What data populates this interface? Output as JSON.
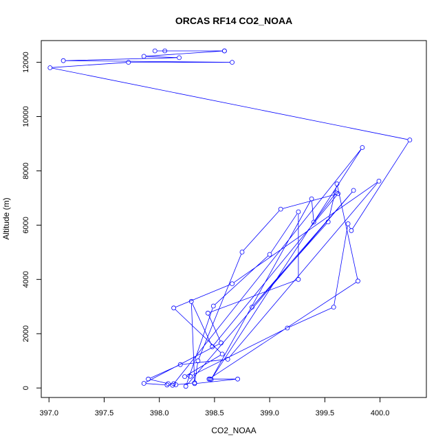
{
  "chart_data": {
    "type": "line",
    "title": "ORCAS RF14 CO2_NOAA",
    "xlabel": "CO2_NOAA",
    "ylabel": "Altitude (m)",
    "xlim": [
      396.93,
      400.42
    ],
    "ylim": [
      -350,
      12800
    ],
    "xticks": [
      397.0,
      397.5,
      398.0,
      398.5,
      399.0,
      399.5,
      400.0
    ],
    "xtick_labels": [
      "397.0",
      "397.5",
      "398.0",
      "398.5",
      "399.0",
      "399.5",
      "400.0"
    ],
    "yticks": [
      0,
      2000,
      4000,
      6000,
      8000,
      10000,
      12000
    ],
    "ytick_labels": [
      "0",
      "2000",
      "4000",
      "6000",
      "8000",
      "10000",
      "12000"
    ],
    "grid": false,
    "marker": "open-circle",
    "line_color": "#0000ff",
    "series": [
      {
        "points": [
          [
            398.59,
            12420
          ],
          [
            397.96,
            12420
          ],
          [
            398.05,
            12420
          ],
          [
            398.59,
            12420
          ],
          [
            397.86,
            12220
          ],
          [
            398.18,
            12170
          ],
          [
            397.13,
            12060
          ],
          [
            398.66,
            12000
          ],
          [
            397.72,
            12000
          ],
          [
            397.01,
            11800
          ],
          [
            400.27,
            9140
          ],
          [
            399.74,
            5800
          ],
          [
            399.71,
            6050
          ],
          [
            399.58,
            2980
          ],
          [
            399.16,
            2210
          ],
          [
            398.28,
            430
          ],
          [
            398.23,
            420
          ],
          [
            398.57,
            1250
          ],
          [
            398.13,
            2950
          ],
          [
            398.66,
            3840
          ],
          [
            399.99,
            7620
          ],
          [
            398.62,
            1060
          ],
          [
            398.19,
            860
          ],
          [
            397.9,
            330
          ],
          [
            398.08,
            160
          ],
          [
            398.13,
            160
          ],
          [
            398.15,
            120
          ],
          [
            398.32,
            190
          ],
          [
            398.35,
            1000
          ],
          [
            398.75,
            5010
          ],
          [
            399.1,
            6590
          ],
          [
            399.62,
            7160
          ],
          [
            398.48,
            1520
          ],
          [
            398.29,
            3190
          ],
          [
            398.32,
            160
          ],
          [
            398.71,
            330
          ],
          [
            398.46,
            330
          ],
          [
            398.45,
            330
          ],
          [
            399.8,
            3940
          ],
          [
            399.61,
            7520
          ],
          [
            399.53,
            6120
          ],
          [
            398.84,
            2980
          ],
          [
            399.76,
            7280
          ],
          [
            398.24,
            60
          ],
          [
            398.49,
            3020
          ],
          [
            399.0,
            4920
          ],
          [
            399.26,
            6490
          ],
          [
            399.26,
            4000
          ],
          [
            398.44,
            2760
          ],
          [
            398.56,
            1660
          ],
          [
            397.86,
            170
          ],
          [
            398.07,
            110
          ],
          [
            398.12,
            100
          ],
          [
            399.84,
            8860
          ],
          [
            398.47,
            320
          ],
          [
            399.38,
            6970
          ],
          [
            399.4,
            6110
          ],
          [
            399.6,
            7190
          ]
        ]
      }
    ]
  }
}
